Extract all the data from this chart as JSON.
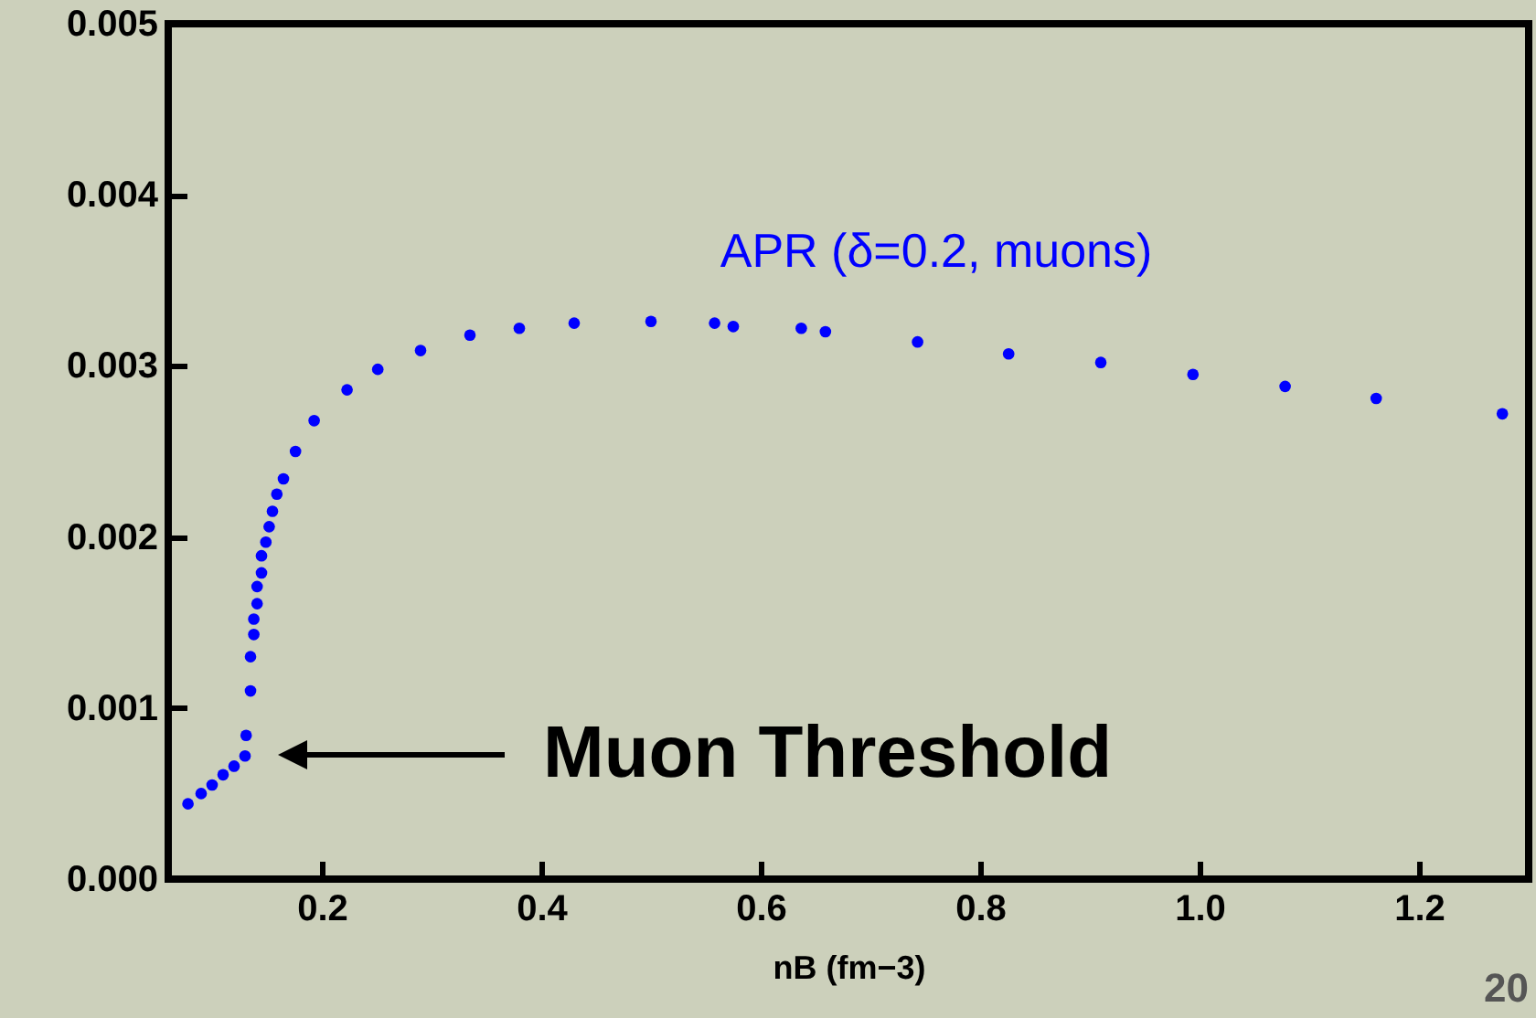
{
  "chart_data": {
    "type": "scatter",
    "xlabel": "nB (fm−3)",
    "xlim": [
      0.06,
      1.3
    ],
    "ylim": [
      0,
      0.005
    ],
    "xticks": [
      0.2,
      0.4,
      0.6,
      0.8,
      {
        "value": 1,
        "label": "1.0"
      },
      1.2
    ],
    "yticks": [
      {
        "value": 0,
        "label": "0.000"
      },
      {
        "value": 0.001,
        "label": "0.001"
      },
      {
        "value": 0.002,
        "label": "0.002"
      },
      {
        "value": 0.003,
        "label": "0.003"
      },
      {
        "value": 0.004,
        "label": "0.004"
      },
      {
        "value": 0.005,
        "label": "0.005"
      }
    ],
    "grid": false,
    "legend": false,
    "marker": "circle",
    "series": [
      {
        "name": "APR (δ=0.2, muons)",
        "color": "#0000ff",
        "x": [
          0.078,
          0.09,
          0.1,
          0.11,
          0.12,
          0.13,
          0.131,
          0.135,
          0.135,
          0.138,
          0.138,
          0.141,
          0.141,
          0.145,
          0.145,
          0.149,
          0.152,
          0.155,
          0.159,
          0.165,
          0.176,
          0.193,
          0.223,
          0.251,
          0.29,
          0.335,
          0.38,
          0.43,
          0.5,
          0.558,
          0.575,
          0.637,
          0.659,
          0.743,
          0.826,
          0.91,
          0.994,
          1.078,
          1.161,
          1.276
        ],
        "values": [
          0.00044,
          0.0005,
          0.00055,
          0.00061,
          0.00066,
          0.00072,
          0.00084,
          0.0011,
          0.0013,
          0.00143,
          0.00152,
          0.00161,
          0.00171,
          0.00179,
          0.00189,
          0.00197,
          0.00206,
          0.00215,
          0.00225,
          0.00234,
          0.0025,
          0.00268,
          0.00286,
          0.00298,
          0.00309,
          0.00318,
          0.00322,
          0.00325,
          0.00326,
          0.00325,
          0.00323,
          0.00322,
          0.0032,
          0.00314,
          0.00307,
          0.00302,
          0.00295,
          0.00288,
          0.00281,
          0.00272
        ]
      }
    ],
    "annotations": [
      "Muon Threshold",
      "20"
    ]
  }
}
